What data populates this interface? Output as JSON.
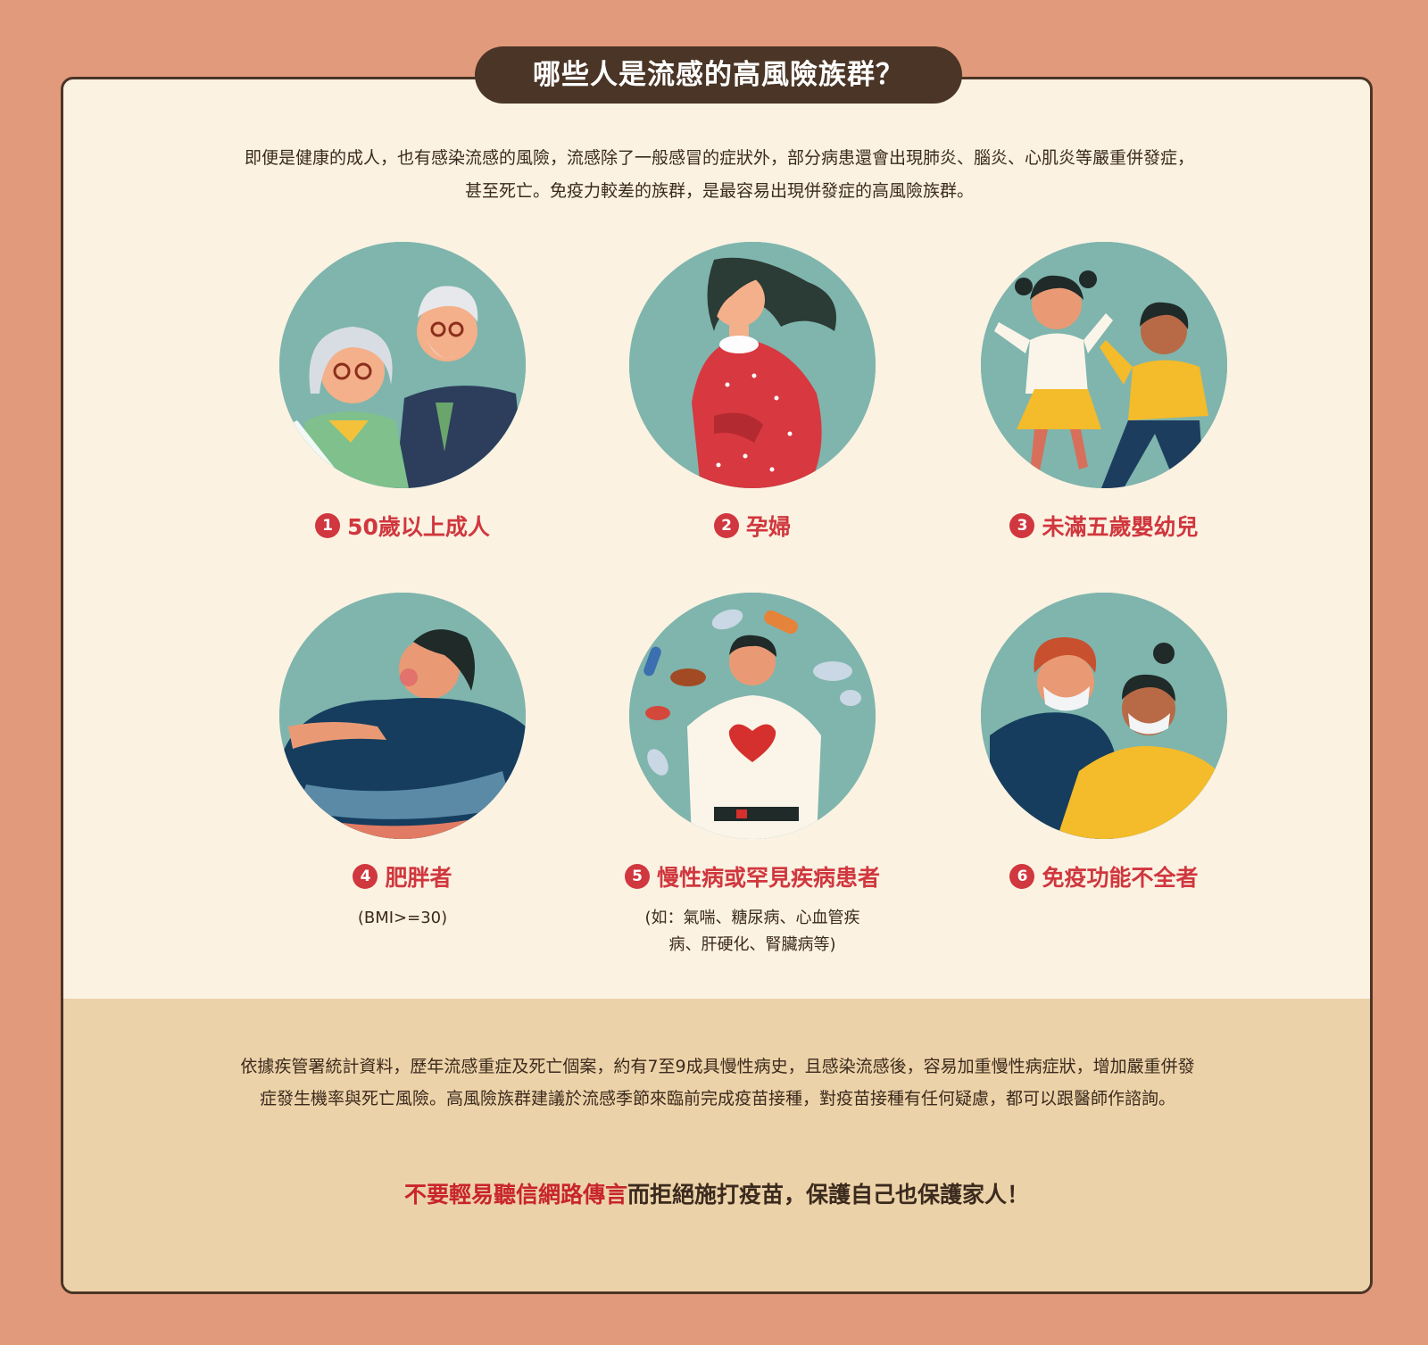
{
  "title": "哪些人是流感的高風險族群？",
  "intro": "即便是健康的成人，也有感染流感的風險，流感除了一般感冒的症狀外，部分病患還會出現肺炎、腦炎、心肌炎等嚴重併發症，甚至死亡。免疫力較差的族群，是最容易出現併發症的高風險族群。",
  "groups": [
    {
      "num": "1",
      "label": "50歲以上成人",
      "sub": ""
    },
    {
      "num": "2",
      "label": "孕婦",
      "sub": ""
    },
    {
      "num": "3",
      "label": "未滿五歲嬰幼兒",
      "sub": ""
    },
    {
      "num": "4",
      "label": "肥胖者",
      "sub": "(BMI>=30)"
    },
    {
      "num": "5",
      "label": "慢性病或罕見疾病患者",
      "sub": "(如：氣喘、糖尿病、心血管疾病、肝硬化、腎臟病等)"
    },
    {
      "num": "6",
      "label": "免疫功能不全者",
      "sub": ""
    }
  ],
  "note": "依據疾管署統計資料，歷年流感重症及死亡個案，約有7至9成具慢性病史，且感染流感後，容易加重慢性病症狀，增加嚴重併發症發生機率與死亡風險。高風險族群建議於流感季節來臨前完成疫苗接種，對疫苗接種有任何疑慮，都可以跟醫師作諮詢。",
  "slogan": {
    "highlight": "不要輕易聽信網路傳言",
    "rest": "而拒絕施打疫苗，保護自己也保護家人！"
  },
  "colors": {
    "background": "#e29a7c",
    "card": "#fbf2e2",
    "accent_red": "#d0373e",
    "dark_brown": "#4a3526",
    "teal_circle": "#7fb5ad",
    "bottom_band": "#ecd2a8"
  }
}
